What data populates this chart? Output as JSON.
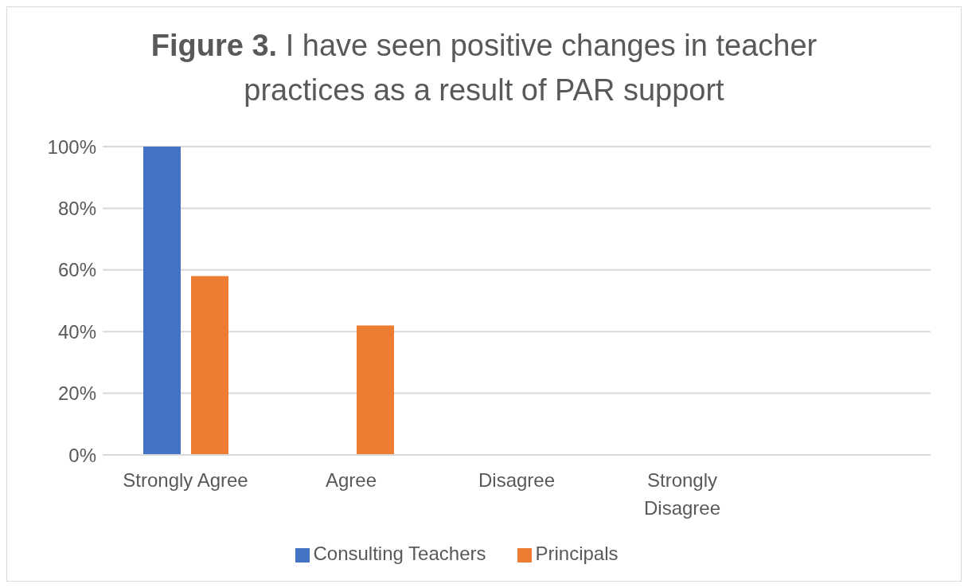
{
  "chart_data": {
    "type": "bar",
    "title": "Figure 3. I have seen positive changes in teacher practices as a result of PAR support",
    "categories": [
      "Strongly Agree",
      "Agree",
      "Disagree",
      "Strongly\nDisagree",
      null
    ],
    "series": [
      {
        "name": "Consulting Teachers",
        "color": "#4472c4",
        "values": [
          100,
          0,
          0,
          0,
          null
        ]
      },
      {
        "name": "Principals",
        "color": "#ed7d31",
        "values": [
          58,
          42,
          0,
          0,
          null
        ]
      }
    ],
    "ylim": [
      0,
      100
    ],
    "yticks": [
      {
        "value": 0,
        "label": "0%"
      },
      {
        "value": 20,
        "label": "20%"
      },
      {
        "value": 40,
        "label": "40%"
      },
      {
        "value": 60,
        "label": "60%"
      },
      {
        "value": 80,
        "label": "80%"
      },
      {
        "value": 100,
        "label": "100%"
      }
    ],
    "grid": "y",
    "legend": "bottom"
  }
}
